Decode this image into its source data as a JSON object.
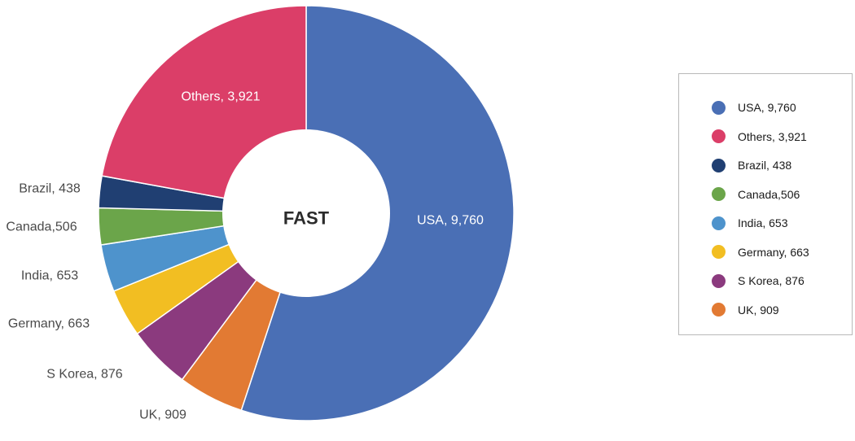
{
  "chart_data": {
    "type": "pie",
    "center_label": "FAST",
    "slices": [
      {
        "name": "USA",
        "value": 9760,
        "label": "USA, 9,760",
        "color": "#4A6FB5"
      },
      {
        "name": "UK",
        "value": 909,
        "label": "UK, 909",
        "color": "#E27A33"
      },
      {
        "name": "S Korea",
        "value": 876,
        "label": "S Korea, 876",
        "color": "#8B3A7E"
      },
      {
        "name": "Germany",
        "value": 663,
        "label": "Germany, 663",
        "color": "#F2BE22"
      },
      {
        "name": "India",
        "value": 653,
        "label": "India, 653",
        "color": "#4E93CC"
      },
      {
        "name": "Canada",
        "value": 506,
        "label": "Canada,506",
        "color": "#6BA54A"
      },
      {
        "name": "Brazil",
        "value": 438,
        "label": "Brazil, 438",
        "color": "#203F72"
      },
      {
        "name": "Others",
        "value": 3921,
        "label": "Others, 3,921",
        "color": "#DB3E68"
      }
    ],
    "legend": {
      "position": "right",
      "order": [
        "USA",
        "Others",
        "Brazil",
        "Canada",
        "India",
        "Germany",
        "S Korea",
        "UK"
      ]
    }
  }
}
